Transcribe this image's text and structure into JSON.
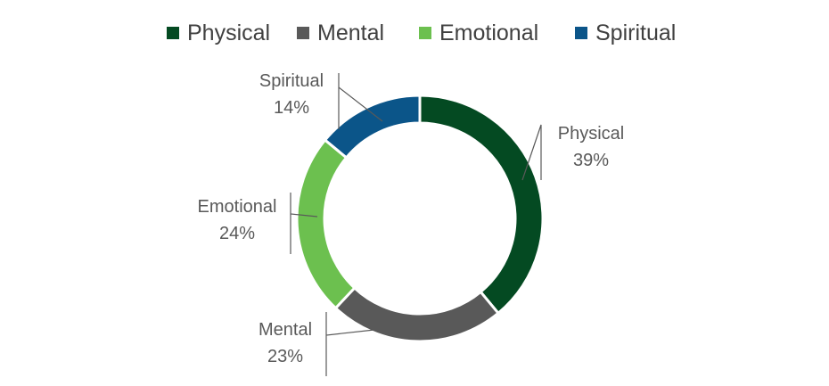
{
  "chart_data": {
    "type": "pie",
    "subtype": "doughnut",
    "title": "",
    "legend": {
      "position": "top",
      "entries": [
        "Physical",
        "Mental",
        "Emotional",
        "Spiritual"
      ]
    },
    "slices": [
      {
        "name": "Physical",
        "value": 39,
        "label": "39%",
        "color": "#044A22"
      },
      {
        "name": "Mental",
        "value": 23,
        "label": "23%",
        "color": "#595959"
      },
      {
        "name": "Emotional",
        "value": 24,
        "label": "24%",
        "color": "#6CC04F"
      },
      {
        "name": "Spiritual",
        "value": 14,
        "label": "14%",
        "color": "#0B5589"
      }
    ]
  }
}
